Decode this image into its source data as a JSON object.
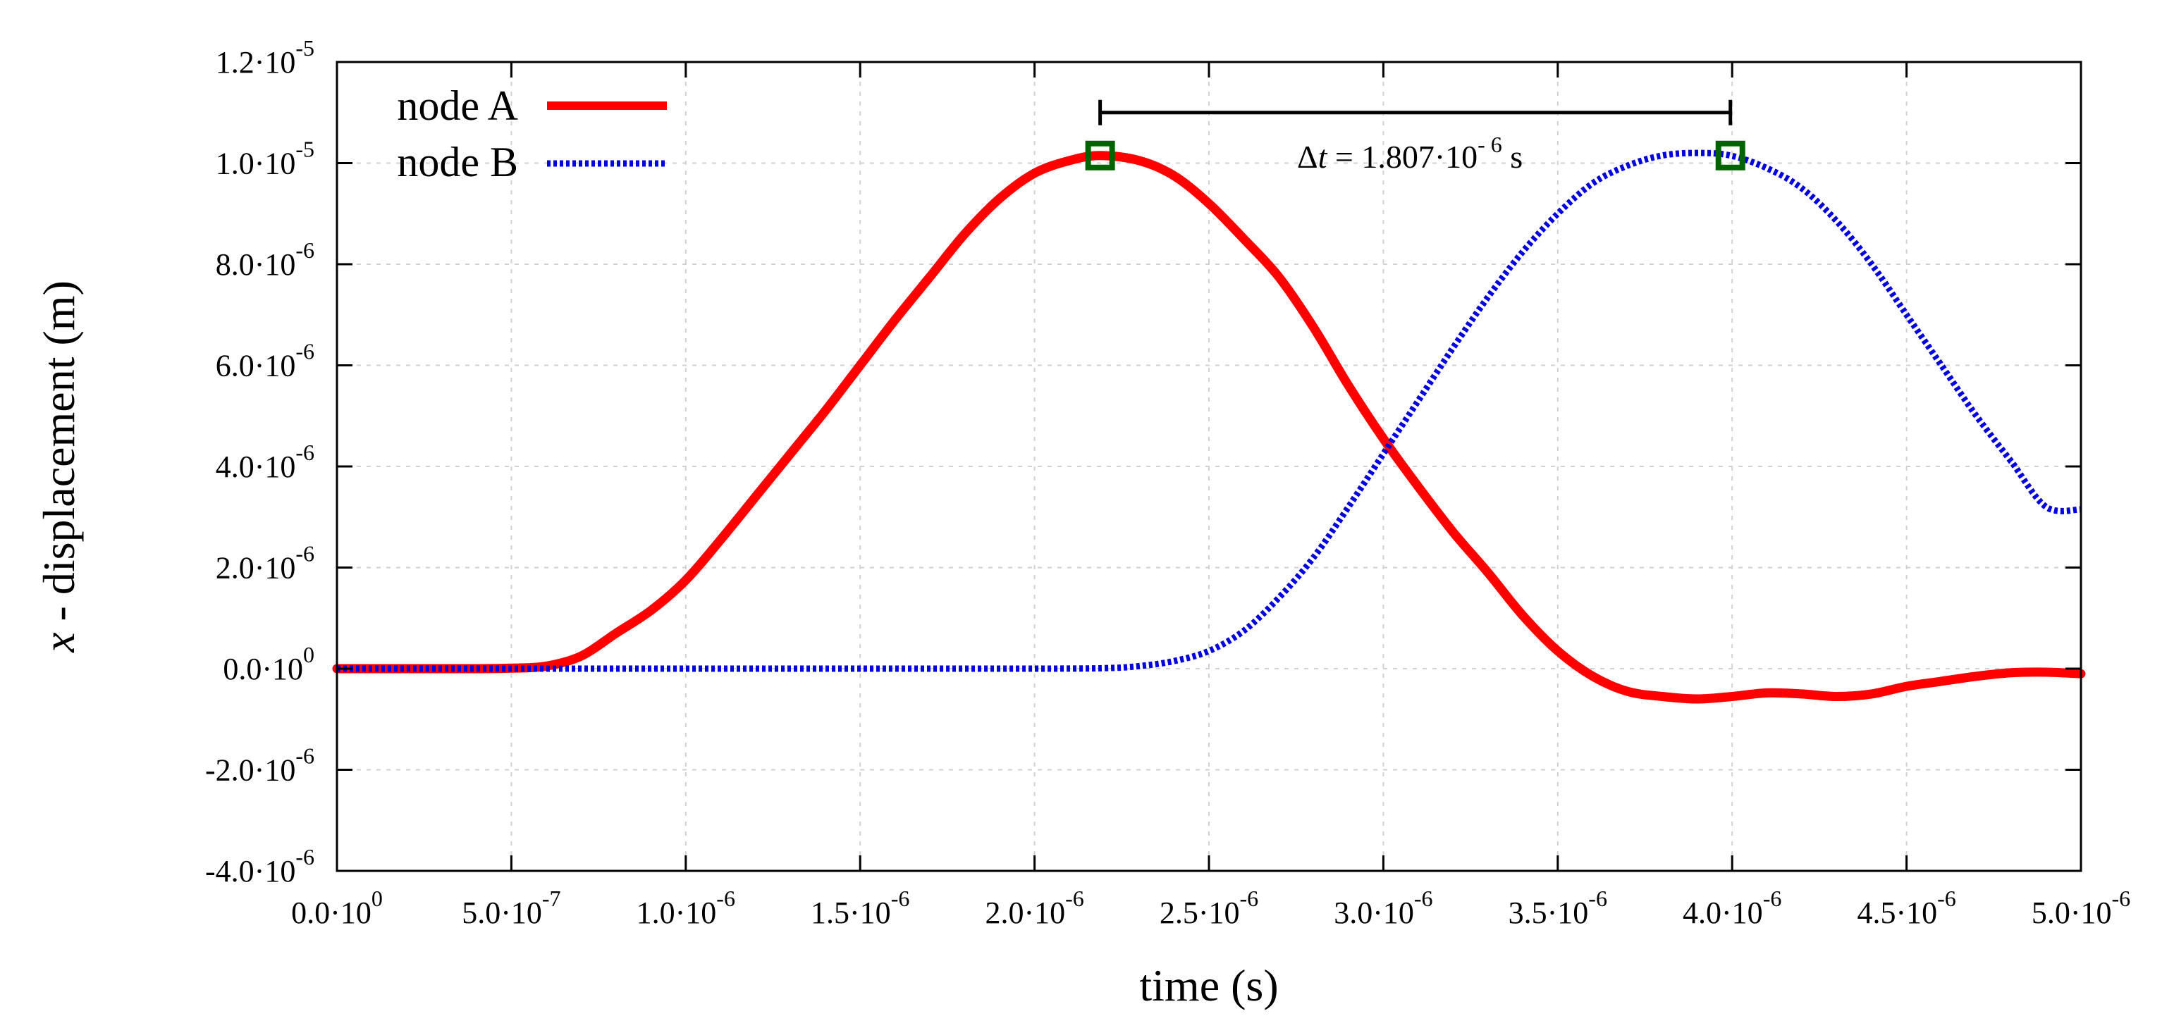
{
  "chart_data": {
    "type": "line",
    "xlabel": "time (s)",
    "ylabel_var": "x",
    "ylabel_rest": " - displacement (m)",
    "xlim": [
      0,
      5e-06
    ],
    "ylim": [
      -4e-06,
      1.2e-05
    ],
    "grid": true,
    "legend_position": "top-left",
    "x_ticks": [
      {
        "value": 0,
        "mant": "0.0·10",
        "exp": "0"
      },
      {
        "value": 5e-07,
        "mant": "5.0·10",
        "exp": "-7"
      },
      {
        "value": 1e-06,
        "mant": "1.0·10",
        "exp": "-6"
      },
      {
        "value": 1.5e-06,
        "mant": "1.5·10",
        "exp": "-6"
      },
      {
        "value": 2e-06,
        "mant": "2.0·10",
        "exp": "-6"
      },
      {
        "value": 2.5e-06,
        "mant": "2.5·10",
        "exp": "-6"
      },
      {
        "value": 3e-06,
        "mant": "3.0·10",
        "exp": "-6"
      },
      {
        "value": 3.5e-06,
        "mant": "3.5·10",
        "exp": "-6"
      },
      {
        "value": 4e-06,
        "mant": "4.0·10",
        "exp": "-6"
      },
      {
        "value": 4.5e-06,
        "mant": "4.5·10",
        "exp": "-6"
      },
      {
        "value": 5e-06,
        "mant": "5.0·10",
        "exp": "-6"
      }
    ],
    "y_ticks": [
      {
        "value": -4e-06,
        "mant": "-4.0·10",
        "exp": "-6"
      },
      {
        "value": -2e-06,
        "mant": "-2.0·10",
        "exp": "-6"
      },
      {
        "value": 0,
        "mant": "0.0·10",
        "exp": "0"
      },
      {
        "value": 2e-06,
        "mant": "2.0·10",
        "exp": "-6"
      },
      {
        "value": 4e-06,
        "mant": "4.0·10",
        "exp": "-6"
      },
      {
        "value": 6e-06,
        "mant": "6.0·10",
        "exp": "-6"
      },
      {
        "value": 8e-06,
        "mant": "8.0·10",
        "exp": "-6"
      },
      {
        "value": 1e-05,
        "mant": "1.0·10",
        "exp": "-5"
      },
      {
        "value": 1.2e-05,
        "mant": "1.2·10",
        "exp": "-5"
      }
    ],
    "series": [
      {
        "name": "node A",
        "color": "#ff0000",
        "style": "solid",
        "x": [
          0,
          2e-07,
          4e-07,
          5e-07,
          6e-07,
          7e-07,
          8e-07,
          9e-07,
          1e-06,
          1.1e-06,
          1.2e-06,
          1.3e-06,
          1.4e-06,
          1.5e-06,
          1.6e-06,
          1.7e-06,
          1.8e-06,
          1.9e-06,
          2e-06,
          2.1e-06,
          2.188e-06,
          2.3e-06,
          2.4e-06,
          2.5e-06,
          2.6e-06,
          2.7e-06,
          2.8e-06,
          2.9e-06,
          3e-06,
          3.1e-06,
          3.2e-06,
          3.3e-06,
          3.4e-06,
          3.5e-06,
          3.6e-06,
          3.7e-06,
          3.8e-06,
          3.9e-06,
          4e-06,
          4.1e-06,
          4.2e-06,
          4.3e-06,
          4.4e-06,
          4.5e-06,
          4.6e-06,
          4.7e-06,
          4.8e-06,
          4.9e-06,
          5e-06
        ],
        "values": [
          0,
          0,
          0,
          1e-08,
          5e-08,
          2.5e-07,
          7e-07,
          1.15e-06,
          1.75e-06,
          2.55e-06,
          3.4e-06,
          4.25e-06,
          5.1e-06,
          6e-06,
          6.9e-06,
          7.75e-06,
          8.6e-06,
          9.3e-06,
          9.8e-06,
          1.005e-05,
          1.015e-05,
          1.005e-05,
          9.75e-06,
          9.2e-06,
          8.5e-06,
          7.75e-06,
          6.75e-06,
          5.6e-06,
          4.55e-06,
          3.6e-06,
          2.7e-06,
          1.9e-06,
          1.05e-06,
          3.5e-07,
          -1.5e-07,
          -4.5e-07,
          -5.5e-07,
          -6e-07,
          -5.5e-07,
          -4.8e-07,
          -5e-07,
          -5.5e-07,
          -5e-07,
          -3.5e-07,
          -2.5e-07,
          -1.5e-07,
          -8e-08,
          -7e-08,
          -1e-07
        ]
      },
      {
        "name": "node B",
        "color": "#0000e0",
        "style": "dotted",
        "x": [
          0,
          5e-07,
          1e-06,
          1.5e-06,
          2e-06,
          2.2e-06,
          2.3e-06,
          2.4e-06,
          2.5e-06,
          2.6e-06,
          2.7e-06,
          2.8e-06,
          2.9e-06,
          3e-06,
          3.1e-06,
          3.2e-06,
          3.3e-06,
          3.4e-06,
          3.5e-06,
          3.6e-06,
          3.7e-06,
          3.8e-06,
          3.9e-06,
          3.995e-06,
          4.1e-06,
          4.2e-06,
          4.3e-06,
          4.4e-06,
          4.5e-06,
          4.6e-06,
          4.7e-06,
          4.8e-06,
          4.9e-06,
          5e-06
        ],
        "values": [
          0,
          0,
          0,
          0,
          0,
          1e-08,
          5e-08,
          1.5e-07,
          3.5e-07,
          7.5e-07,
          1.4e-06,
          2.2e-06,
          3.2e-06,
          4.25e-06,
          5.3e-06,
          6.35e-06,
          7.35e-06,
          8.25e-06,
          9e-06,
          9.6e-06,
          9.95e-06,
          1.015e-05,
          1.02e-05,
          1.015e-05,
          9.9e-06,
          9.5e-06,
          8.85e-06,
          8e-06,
          7e-06,
          6e-06,
          5e-06,
          4.1e-06,
          3.2e-06,
          3.15e-06
        ]
      }
    ],
    "peak_markers": [
      {
        "x": 2.188e-06,
        "y": 1.015e-05,
        "color": "#006400"
      },
      {
        "x": 3.995e-06,
        "y": 1.015e-05,
        "color": "#006400"
      }
    ],
    "annotation": {
      "x_start": 2.188e-06,
      "x_end": 3.995e-06,
      "y": 1.1e-05,
      "delta_symbol": "Δ",
      "var": "t",
      "equals": " = 1.807·10",
      "exp": "- 6",
      "unit": " s"
    }
  }
}
